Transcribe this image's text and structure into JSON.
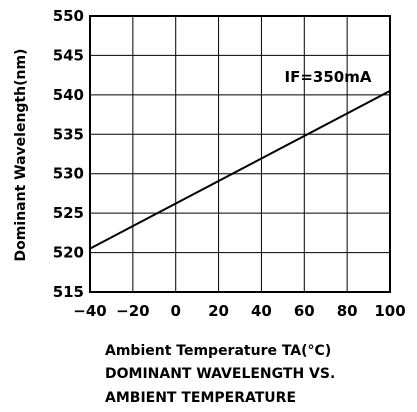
{
  "chart_data": {
    "type": "line",
    "xlabel": "Ambient Temperature TA(°C)",
    "ylabel": "Dominant Wavelength(nm)",
    "caption_lines": [
      "DOMINANT WAVELENGTH VS.",
      "AMBIENT TEMPERATURE"
    ],
    "xlim": [
      -40,
      100
    ],
    "ylim": [
      515,
      550
    ],
    "x_ticks": [
      -40,
      -20,
      0,
      20,
      40,
      60,
      80,
      100
    ],
    "x_tick_labels": [
      "−40",
      "−20",
      "0",
      "20",
      "40",
      "60",
      "80",
      "100"
    ],
    "y_ticks": [
      515,
      520,
      525,
      530,
      535,
      540,
      545,
      550
    ],
    "y_tick_labels": [
      "515",
      "520",
      "525",
      "530",
      "535",
      "540",
      "545",
      "550"
    ],
    "grid": true,
    "series": [
      {
        "name": "IF=350mA",
        "x": [
          -40,
          100
        ],
        "y": [
          520.5,
          540.5
        ]
      }
    ],
    "annotation": "IF=350mA",
    "line_color": "#000000"
  }
}
